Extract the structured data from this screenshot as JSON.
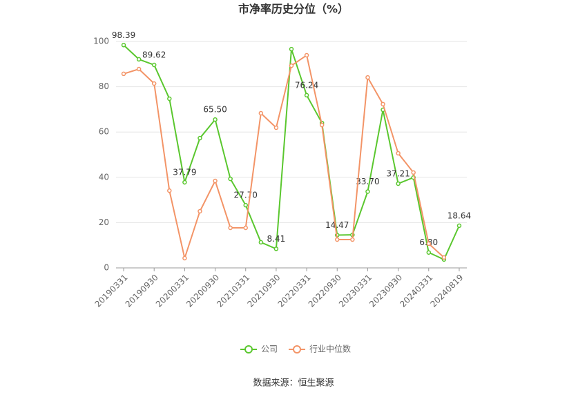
{
  "chart_data": {
    "type": "line",
    "title": "市净率历史分位（%）",
    "categories": [
      "20190331",
      null,
      "20190930",
      null,
      "20200331",
      null,
      "20200930",
      null,
      "20210331",
      null,
      "20210930",
      null,
      "20220331",
      null,
      "20220930",
      null,
      "20230331",
      null,
      "20230930",
      null,
      "20240331",
      null,
      "20240819"
    ],
    "series": [
      {
        "name": "公司",
        "color": "#5ac72e",
        "values": [
          98.39,
          92.1,
          89.62,
          74.7,
          37.79,
          57.3,
          65.5,
          39.3,
          27.7,
          11.3,
          8.41,
          96.6,
          76.24,
          64.0,
          14.47,
          14.6,
          33.7,
          69.8,
          37.21,
          39.9,
          6.8,
          3.7,
          18.64
        ],
        "value_labels": [
          "98.39",
          null,
          "89.62",
          null,
          "37.79",
          null,
          "65.50",
          null,
          "27.70",
          null,
          "8.41",
          null,
          "76.24",
          null,
          "14.47",
          null,
          "33.70",
          null,
          "37.21",
          null,
          "6.80",
          null,
          "18.64"
        ]
      },
      {
        "name": "行业中位数",
        "color": "#f39467",
        "values": [
          85.7,
          87.8,
          81.4,
          34.1,
          4.3,
          25.0,
          38.4,
          17.7,
          17.7,
          68.3,
          61.9,
          89.3,
          93.9,
          63.1,
          12.5,
          12.5,
          84.1,
          72.3,
          50.6,
          42.1,
          10.7,
          4.6,
          null
        ]
      }
    ],
    "ylim": [
      0,
      100
    ],
    "yticks": [
      0,
      20,
      40,
      60,
      80,
      100
    ],
    "grid": true,
    "legend": "bottom",
    "source": "数据来源：恒生聚源"
  }
}
